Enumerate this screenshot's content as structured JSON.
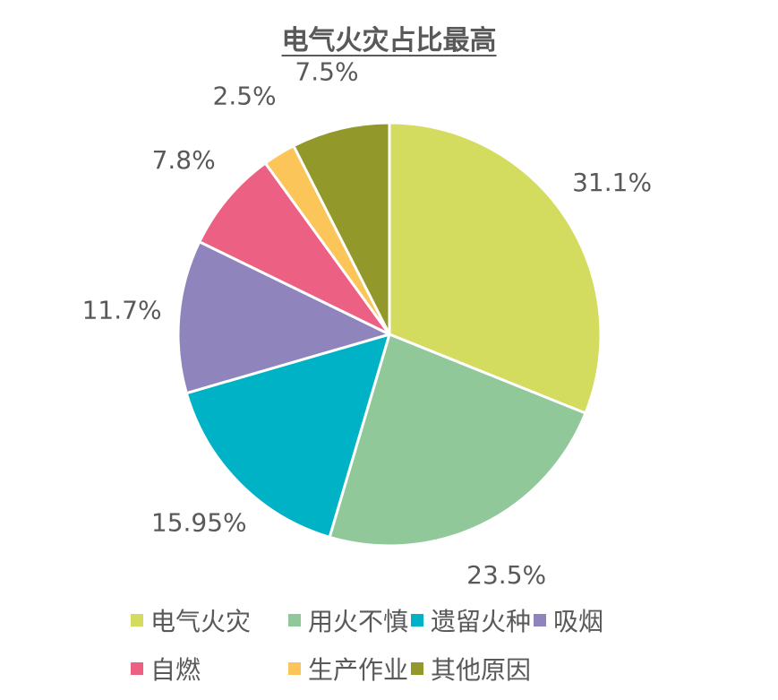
{
  "chart_data": {
    "type": "pie",
    "title": "电气火灾占比最高",
    "categories": [
      "电气火灾",
      "用火不慎",
      "遗留火种",
      "吸烟",
      "自燃",
      "生产作业",
      "其他原因"
    ],
    "values": [
      31.1,
      23.5,
      15.95,
      11.7,
      7.8,
      2.5,
      7.5
    ],
    "data_labels": [
      "31.1%",
      "23.5%",
      "15.95%",
      "11.7%",
      "7.8%",
      "2.5%",
      "7.5%"
    ],
    "colors": [
      "#D3DC5E",
      "#90C89A",
      "#00B2C6",
      "#8F84BC",
      "#EC6183",
      "#FBC55A",
      "#93982A"
    ],
    "legend_position": "bottom",
    "start_angle": "12 o'clock",
    "direction": "clockwise"
  }
}
